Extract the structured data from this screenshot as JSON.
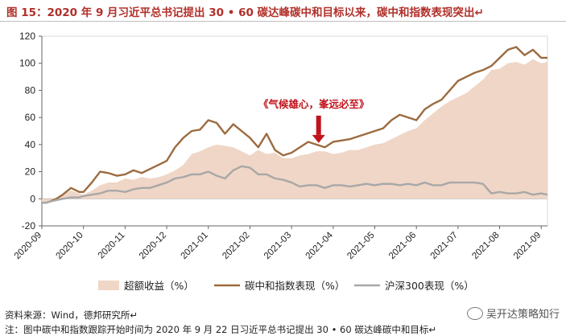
{
  "title": "图 15：2020 年 9 月习近平总书记提出 30 • 60 碳达峰碳中和目标以来，碳中和指数表现突出↵",
  "source": "资料来源：Wind，德邦研究所↵",
  "note": "注：图中碳中和指数跟踪开始时间为 2020 年 9 月 22 日习近平总书记提出 30 • 60 碳达峰碳中和目标↵",
  "watermark": "吴开达策略知行",
  "colors": {
    "area": "#f0d6c6",
    "carbon": "#9c6b3f",
    "hs300": "#a8a8a8",
    "annotation": "#c0141c"
  },
  "chart_data": {
    "type": "line",
    "ylim": [
      -20,
      120
    ],
    "yticks": [
      "-20",
      "0",
      "20",
      "40",
      "60",
      "80",
      "100",
      "120"
    ],
    "xticks": [
      "2020-09",
      "2020-10",
      "2020-11",
      "2020-12",
      "2021-01",
      "2021-02",
      "2021-03",
      "2021-04",
      "2021-05",
      "2021-06",
      "2021-07",
      "2021-08",
      "2021-09"
    ],
    "x_month_offsets": [
      0,
      1,
      2,
      3,
      4,
      5,
      6,
      7,
      8,
      9,
      10,
      11,
      12
    ],
    "annotation": {
      "text": "《气候雄心，峯远必至》",
      "x": 6.65,
      "y": 40
    },
    "series": [
      {
        "name": "超额收益（%）",
        "kind": "area",
        "x": [
          0,
          0.1,
          0.2,
          0.35,
          0.5,
          0.7,
          0.9,
          1.0,
          1.2,
          1.4,
          1.6,
          1.8,
          2.0,
          2.2,
          2.4,
          2.6,
          2.8,
          3.0,
          3.2,
          3.4,
          3.6,
          3.8,
          4.0,
          4.2,
          4.4,
          4.6,
          4.8,
          5.0,
          5.2,
          5.4,
          5.6,
          5.8,
          6.0,
          6.2,
          6.4,
          6.6,
          6.8,
          7.0,
          7.2,
          7.4,
          7.6,
          7.8,
          8.0,
          8.2,
          8.4,
          8.6,
          8.8,
          9.0,
          9.2,
          9.4,
          9.6,
          9.8,
          10.0,
          10.2,
          10.4,
          10.6,
          10.8,
          11.0,
          11.2,
          11.4,
          11.6,
          11.8,
          12.0,
          12.15
        ],
        "values": [
          -3,
          -3,
          -2,
          0,
          3,
          6,
          4,
          3,
          6,
          10,
          12,
          12,
          15,
          14,
          16,
          15,
          16,
          18,
          21,
          25,
          33,
          35,
          38,
          40,
          39,
          38,
          35,
          32,
          36,
          33,
          34,
          30,
          30,
          32,
          33,
          35,
          35,
          33,
          34,
          36,
          36,
          38,
          40,
          41,
          44,
          47,
          50,
          52,
          58,
          63,
          68,
          72,
          75,
          78,
          83,
          88,
          95,
          96,
          100,
          101,
          99,
          103,
          100,
          101
        ]
      },
      {
        "name": "碳中和指数表现（%）",
        "kind": "line",
        "x": [
          0,
          0.1,
          0.2,
          0.35,
          0.5,
          0.7,
          0.9,
          1.0,
          1.2,
          1.4,
          1.6,
          1.8,
          2.0,
          2.2,
          2.4,
          2.6,
          2.8,
          3.0,
          3.2,
          3.4,
          3.6,
          3.8,
          4.0,
          4.2,
          4.4,
          4.6,
          4.8,
          5.0,
          5.2,
          5.4,
          5.6,
          5.8,
          6.0,
          6.2,
          6.4,
          6.6,
          6.8,
          7.0,
          7.2,
          7.4,
          7.6,
          7.8,
          8.0,
          8.2,
          8.4,
          8.6,
          8.8,
          9.0,
          9.2,
          9.4,
          9.6,
          9.8,
          10.0,
          10.2,
          10.4,
          10.6,
          10.8,
          11.0,
          11.2,
          11.4,
          11.6,
          11.8,
          12.0,
          12.15
        ],
        "values": [
          -3,
          -3,
          -2,
          0,
          3,
          8,
          5,
          5,
          12,
          20,
          19,
          17,
          18,
          21,
          19,
          22,
          25,
          28,
          38,
          45,
          50,
          51,
          58,
          56,
          48,
          55,
          50,
          45,
          38,
          48,
          36,
          32,
          34,
          38,
          42,
          40,
          38,
          42,
          43,
          44,
          46,
          48,
          50,
          52,
          58,
          62,
          60,
          58,
          66,
          70,
          73,
          80,
          87,
          90,
          93,
          95,
          98,
          104,
          110,
          112,
          106,
          110,
          104,
          104
        ]
      },
      {
        "name": "沪深300表现（%）",
        "kind": "line",
        "x": [
          0,
          0.1,
          0.2,
          0.35,
          0.5,
          0.7,
          0.9,
          1.0,
          1.2,
          1.4,
          1.6,
          1.8,
          2.0,
          2.2,
          2.4,
          2.6,
          2.8,
          3.0,
          3.2,
          3.4,
          3.6,
          3.8,
          4.0,
          4.2,
          4.4,
          4.6,
          4.8,
          5.0,
          5.2,
          5.4,
          5.6,
          5.8,
          6.0,
          6.2,
          6.4,
          6.6,
          6.8,
          7.0,
          7.2,
          7.4,
          7.6,
          7.8,
          8.0,
          8.2,
          8.4,
          8.6,
          8.8,
          9.0,
          9.2,
          9.4,
          9.6,
          9.8,
          10.0,
          10.2,
          10.4,
          10.6,
          10.8,
          11.0,
          11.2,
          11.4,
          11.6,
          11.8,
          12.0,
          12.15
        ],
        "values": [
          -3,
          -3,
          -2,
          -1,
          0,
          1,
          1,
          2,
          3,
          4,
          6,
          6,
          5,
          7,
          8,
          8,
          10,
          12,
          15,
          16,
          18,
          18,
          20,
          17,
          15,
          21,
          24,
          23,
          18,
          18,
          15,
          14,
          12,
          9,
          10,
          10,
          8,
          10,
          10,
          9,
          10,
          11,
          10,
          11,
          11,
          10,
          11,
          10,
          12,
          10,
          10,
          12,
          12,
          12,
          12,
          11,
          4,
          5,
          4,
          4,
          5,
          3,
          4,
          3
        ]
      }
    ]
  }
}
